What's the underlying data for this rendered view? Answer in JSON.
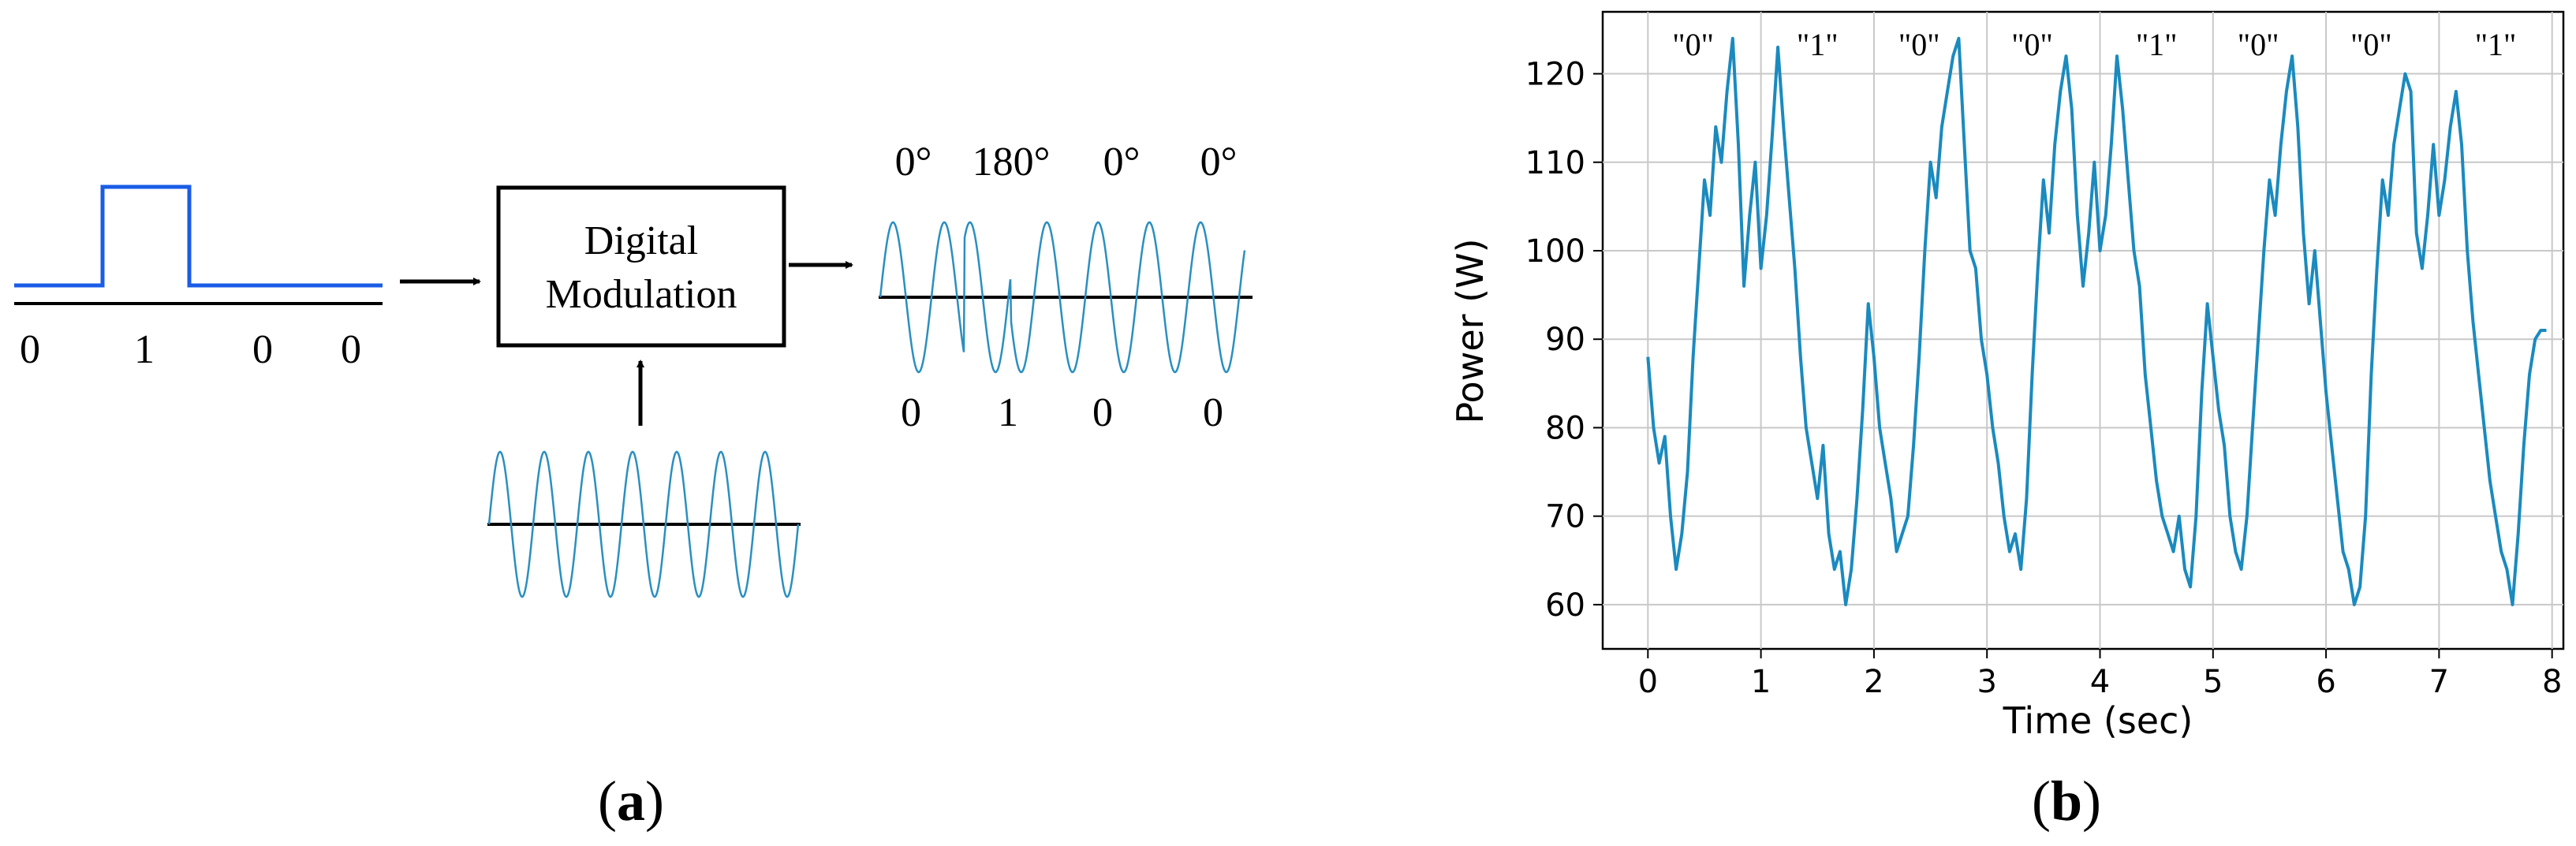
{
  "panel_a": {
    "caption": "a",
    "input_bits": [
      "0",
      "1",
      "0",
      "0"
    ],
    "modulator_lines": [
      "Digital",
      "Modulation"
    ],
    "phase_labels": [
      "0°",
      "180°",
      "0°",
      "0°"
    ],
    "output_bits": [
      "0",
      "1",
      "0",
      "0"
    ],
    "colors": {
      "bit_signal": "#1a5ce6",
      "carrier": "#2a8fc0",
      "lines": "#000000"
    }
  },
  "panel_b": {
    "caption": "b",
    "colors": {
      "series": "#1a8abf",
      "grid": "#c8c8c8"
    },
    "chart_data": {
      "type": "line",
      "xlabel": "Time (sec)",
      "ylabel": "Power (W)",
      "xlim": [
        -0.4,
        8.1
      ],
      "ylim": [
        55,
        127
      ],
      "xticks": [
        0,
        1,
        2,
        3,
        4,
        5,
        6,
        7,
        8
      ],
      "yticks": [
        60,
        70,
        80,
        90,
        100,
        110,
        120
      ],
      "grid": true,
      "bit_annotations": [
        {
          "label": "\"0\"",
          "x": 0.4
        },
        {
          "label": "\"1\"",
          "x": 1.5
        },
        {
          "label": "\"0\"",
          "x": 2.4
        },
        {
          "label": "\"0\"",
          "x": 3.4
        },
        {
          "label": "\"1\"",
          "x": 4.5
        },
        {
          "label": "\"0\"",
          "x": 5.4
        },
        {
          "label": "\"0\"",
          "x": 6.4
        },
        {
          "label": "\"1\"",
          "x": 7.5
        }
      ],
      "series": [
        {
          "x": [
            0.0,
            0.05,
            0.1,
            0.15,
            0.2,
            0.25,
            0.3,
            0.35,
            0.4,
            0.45,
            0.5,
            0.55,
            0.6,
            0.65,
            0.7,
            0.75,
            0.8,
            0.85,
            0.9,
            0.95,
            1.0,
            1.05,
            1.1,
            1.15,
            1.2,
            1.25,
            1.3,
            1.35,
            1.4,
            1.45,
            1.5,
            1.55,
            1.6,
            1.65,
            1.7,
            1.75,
            1.8,
            1.85,
            1.9,
            1.95,
            2.0,
            2.05,
            2.1,
            2.15,
            2.2,
            2.25,
            2.3,
            2.35,
            2.4,
            2.45,
            2.5,
            2.55,
            2.6,
            2.65,
            2.7,
            2.75,
            2.8,
            2.85,
            2.9,
            2.95,
            3.0,
            3.05,
            3.1,
            3.15,
            3.2,
            3.25,
            3.3,
            3.35,
            3.4,
            3.45,
            3.5,
            3.55,
            3.6,
            3.65,
            3.7,
            3.75,
            3.8,
            3.85,
            3.9,
            3.95,
            4.0,
            4.05,
            4.1,
            4.15,
            4.2,
            4.25,
            4.3,
            4.35,
            4.4,
            4.45,
            4.5,
            4.55,
            4.6,
            4.65,
            4.7,
            4.75,
            4.8,
            4.85,
            4.9,
            4.95,
            5.0,
            5.05,
            5.1,
            5.15,
            5.2,
            5.25,
            5.3,
            5.35,
            5.4,
            5.45,
            5.5,
            5.55,
            5.6,
            5.65,
            5.7,
            5.75,
            5.8,
            5.85,
            5.9,
            5.95,
            6.0,
            6.05,
            6.1,
            6.15,
            6.2,
            6.25,
            6.3,
            6.35,
            6.4,
            6.45,
            6.5,
            6.55,
            6.6,
            6.65,
            6.7,
            6.75,
            6.8,
            6.85,
            6.9,
            6.95,
            7.0,
            7.05,
            7.1,
            7.15,
            7.2,
            7.25,
            7.3,
            7.35,
            7.4,
            7.45,
            7.5,
            7.55,
            7.6,
            7.65,
            7.7,
            7.75,
            7.8,
            7.85,
            7.9,
            7.95
          ],
          "y": [
            88,
            80,
            76,
            79,
            70,
            64,
            68,
            75,
            88,
            98,
            108,
            104,
            114,
            110,
            118,
            124,
            112,
            96,
            104,
            110,
            98,
            104,
            113,
            123,
            114,
            106,
            98,
            88,
            80,
            76,
            72,
            78,
            68,
            64,
            66,
            60,
            64,
            72,
            82,
            94,
            88,
            80,
            76,
            72,
            66,
            68,
            70,
            78,
            88,
            100,
            110,
            106,
            114,
            118,
            122,
            124,
            112,
            100,
            98,
            90,
            86,
            80,
            76,
            70,
            66,
            68,
            64,
            72,
            86,
            98,
            108,
            102,
            112,
            118,
            122,
            116,
            104,
            96,
            102,
            110,
            100,
            104,
            112,
            122,
            116,
            108,
            100,
            96,
            86,
            80,
            74,
            70,
            68,
            66,
            70,
            64,
            62,
            70,
            84,
            94,
            88,
            82,
            78,
            70,
            66,
            64,
            70,
            80,
            90,
            100,
            108,
            104,
            112,
            118,
            122,
            114,
            102,
            94,
            100,
            92,
            84,
            78,
            72,
            66,
            64,
            60,
            62,
            70,
            86,
            98,
            108,
            104,
            112,
            116,
            120,
            118,
            102,
            98,
            104,
            112,
            104,
            108,
            114,
            118,
            112,
            100,
            92,
            86,
            80,
            74,
            70,
            66,
            64,
            60,
            68,
            78,
            86,
            90,
            91,
            91
          ]
        }
      ]
    }
  }
}
